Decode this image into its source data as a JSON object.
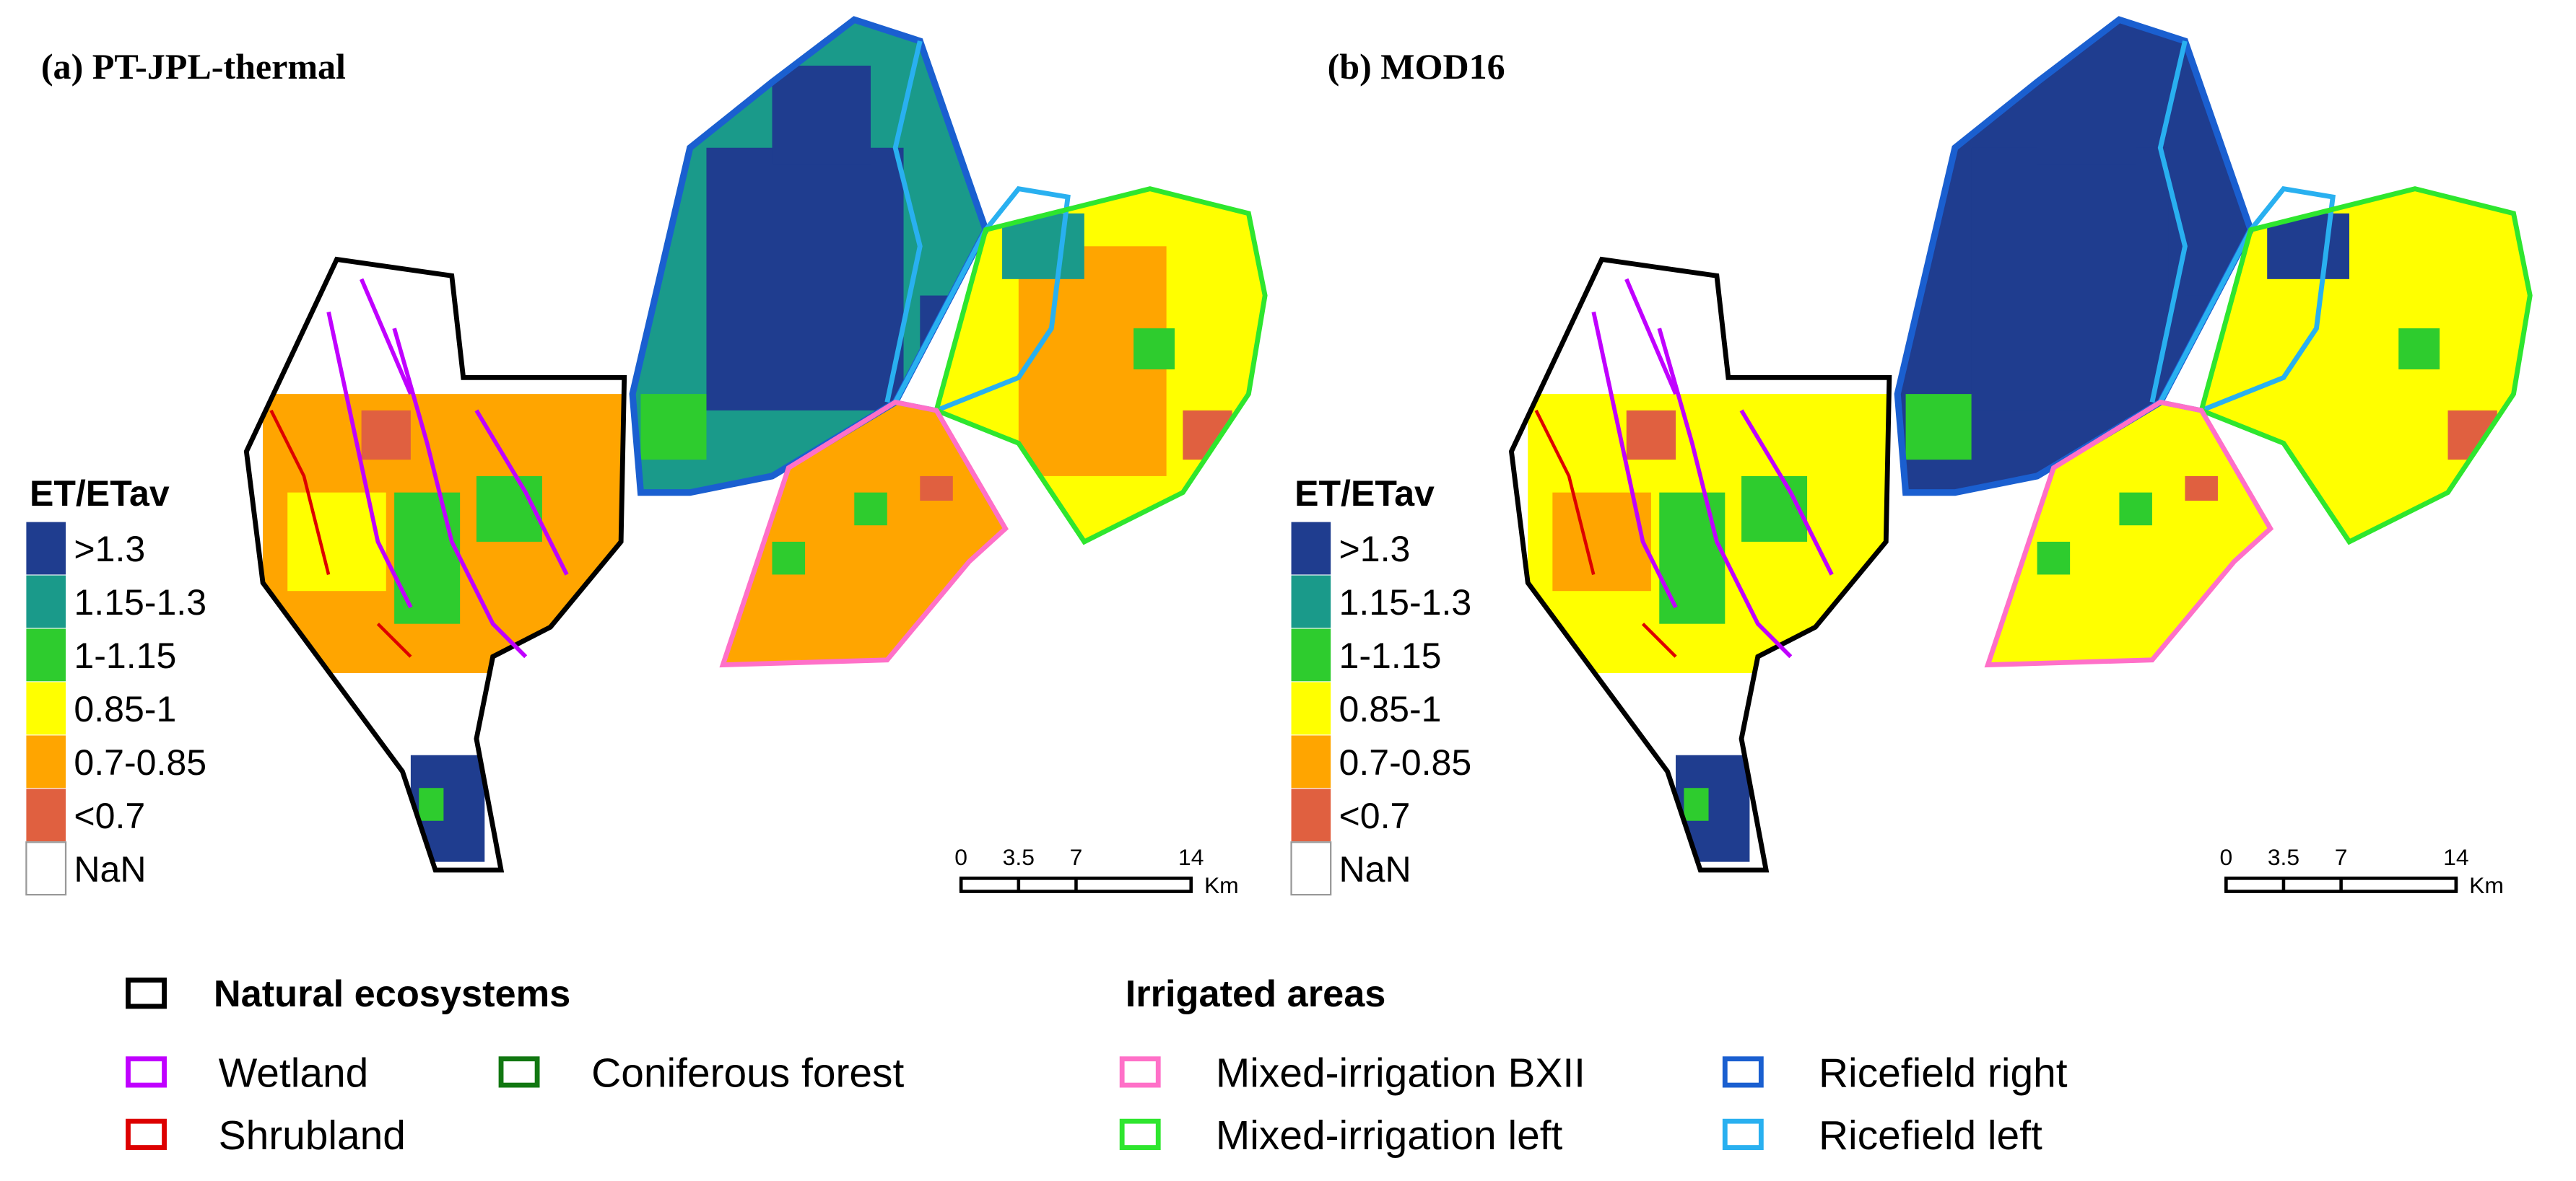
{
  "panels": [
    {
      "title": "(a) PT-JPL-thermal"
    },
    {
      "title": "(b) MOD16"
    }
  ],
  "color_legend": {
    "title": "ET/ETav",
    "classes": [
      {
        "label": ">1.3",
        "color": "#1f3d8f"
      },
      {
        "label": "1.15-1.3",
        "color": "#1a9a8a"
      },
      {
        "label": "1-1.15",
        "color": "#2ecc2e"
      },
      {
        "label": "0.85-1",
        "color": "#ffff00"
      },
      {
        "label": "0.7-0.85",
        "color": "#ffa500"
      },
      {
        "label": "<0.7",
        "color": "#e06040"
      },
      {
        "label": "NaN",
        "color": "#ffffff"
      }
    ]
  },
  "scale_bar": {
    "ticks": [
      0,
      3.5,
      7,
      14
    ],
    "unit": "Km"
  },
  "legend": {
    "natural": {
      "title": "Natural ecosystems",
      "color": "#000000",
      "items": [
        {
          "label": "Wetland",
          "color": "#c000ff"
        },
        {
          "label": "Coniferous forest",
          "color": "#117711"
        },
        {
          "label": "Shrubland",
          "color": "#dd0000"
        }
      ]
    },
    "irrigated": {
      "title": "Irrigated areas",
      "items": [
        {
          "label": "Mixed-irrigation BXII",
          "color": "#ff70c8"
        },
        {
          "label": "Ricefield right",
          "color": "#1a5fd0"
        },
        {
          "label": "Mixed-irrigation left",
          "color": "#2ee62e"
        },
        {
          "label": "Ricefield left",
          "color": "#29b0f0"
        }
      ]
    }
  }
}
